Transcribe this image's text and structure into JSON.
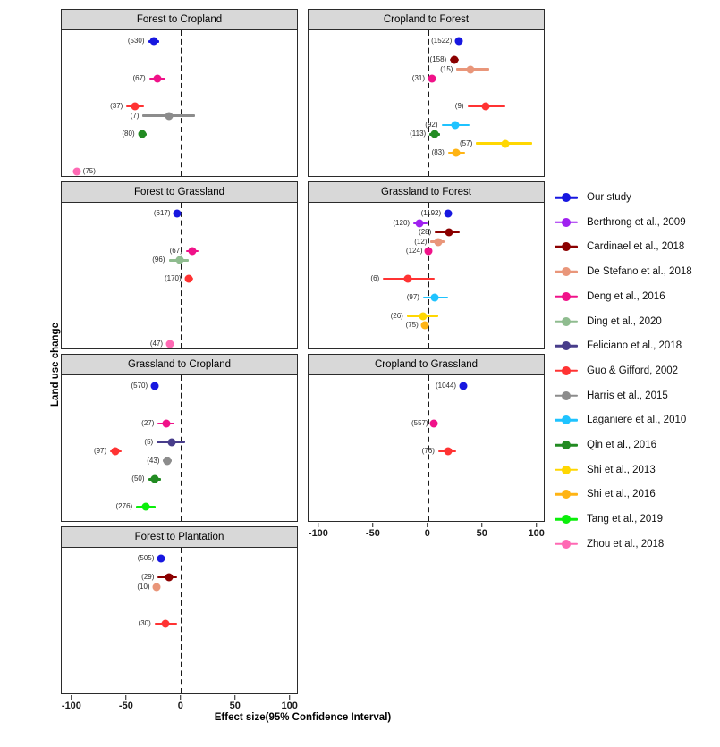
{
  "figure": {
    "y_axis_label": "Land use change",
    "x_axis_label": "Effect size(95% Confidence Interval)"
  },
  "legend": {
    "items": [
      {
        "key": "our-study",
        "label": "Our study",
        "color": "#1717e0"
      },
      {
        "key": "berthrong-2009",
        "label": "Berthrong et al., 2009",
        "color": "#a021f0"
      },
      {
        "key": "cardinael-2018",
        "label": "Cardinael et al., 2018",
        "color": "#8b0000"
      },
      {
        "key": "de-stefano-2018",
        "label": "De Stefano et al., 2018",
        "color": "#e9967a"
      },
      {
        "key": "deng-2016",
        "label": "Deng et al., 2016",
        "color": "#f01289"
      },
      {
        "key": "ding-2020",
        "label": "Ding et al., 2020",
        "color": "#8fbc8f"
      },
      {
        "key": "feliciano-2018",
        "label": "Feliciano et al., 2018",
        "color": "#483d8b"
      },
      {
        "key": "guo-gifford-2002",
        "label": "Guo & Gifford, 2002",
        "color": "#ff3333"
      },
      {
        "key": "harris-2015",
        "label": "Harris et al., 2015",
        "color": "#8c8c8c"
      },
      {
        "key": "laganiere-2010",
        "label": "Laganiere et al., 2010",
        "color": "#1fc3ff"
      },
      {
        "key": "qin-2016",
        "label": "Qin et al., 2016",
        "color": "#228b22"
      },
      {
        "key": "shi-2013",
        "label": "Shi et al., 2013",
        "color": "#ffd702"
      },
      {
        "key": "shi-2016",
        "label": "Shi et al., 2016",
        "color": "#ffb414"
      },
      {
        "key": "tang-2019",
        "label": "Tang et al., 2019",
        "color": "#0bef0b"
      },
      {
        "key": "zhou-2018",
        "label": "Zhou et al., 2018",
        "color": "#ff69b4"
      }
    ]
  },
  "chart_data": {
    "type": "scatter",
    "subtype": "forest-plot-pointrange",
    "xlabel": "Effect size(95% Confidence Interval)",
    "ylabel": "Land use change",
    "x_ticks": [
      -100,
      -50,
      0,
      50,
      100
    ],
    "xlim": [
      -110,
      108
    ],
    "zero_reference_line": 0,
    "grid": false,
    "legend_position": "right",
    "panels": [
      {
        "title": "Forest to Cropland",
        "points": [
          {
            "study": "our-study",
            "n": 530,
            "value": -25,
            "ci": [
              -30,
              -20
            ]
          },
          {
            "study": "deng-2016",
            "n": 67,
            "value": -21,
            "ci": [
              -29,
              -14
            ]
          },
          {
            "study": "guo-gifford-2002",
            "n": 37,
            "value": -42,
            "ci": [
              -50,
              -34
            ]
          },
          {
            "study": "harris-2015",
            "n": 7,
            "value": -11,
            "ci": [
              -35,
              13
            ]
          },
          {
            "study": "qin-2016",
            "n": 80,
            "value": -35,
            "ci": [
              -39,
              -31
            ]
          },
          {
            "study": "zhou-2018",
            "n": 75,
            "value": -96,
            "ci": [
              -98,
              -94
            ],
            "label_side": "right"
          }
        ]
      },
      {
        "title": "Cropland to Forest",
        "points": [
          {
            "study": "our-study",
            "n": 1522,
            "value": 29,
            "ci": [
              26,
              32
            ]
          },
          {
            "study": "cardinael-2018",
            "n": 158,
            "value": 25,
            "ci": [
              21,
              29
            ]
          },
          {
            "study": "de-stefano-2018",
            "n": 15,
            "value": 40,
            "ci": [
              27,
              57
            ]
          },
          {
            "study": "deng-2016",
            "n": 31,
            "value": 4,
            "ci": [
              1,
              7
            ]
          },
          {
            "study": "guo-gifford-2002",
            "n": 9,
            "value": 54,
            "ci": [
              37,
              72
            ]
          },
          {
            "study": "laganiere-2010",
            "n": 92,
            "value": 26,
            "ci": [
              13,
              39
            ]
          },
          {
            "study": "qin-2016",
            "n": 113,
            "value": 7,
            "ci": [
              2,
              12
            ]
          },
          {
            "study": "shi-2013",
            "n": 57,
            "value": 72,
            "ci": [
              45,
              97
            ]
          },
          {
            "study": "shi-2016",
            "n": 83,
            "value": 27,
            "ci": [
              19,
              35
            ]
          }
        ]
      },
      {
        "title": "Forest to Grassland",
        "points": [
          {
            "study": "our-study",
            "n": 617,
            "value": -3,
            "ci": [
              -6,
              0
            ]
          },
          {
            "study": "deng-2016",
            "n": 67,
            "value": 11,
            "ci": [
              5,
              17
            ]
          },
          {
            "study": "ding-2020",
            "n": 96,
            "value": -1,
            "ci": [
              -11,
              8
            ]
          },
          {
            "study": "guo-gifford-2002",
            "n": 170,
            "value": 8,
            "ci": [
              4,
              12
            ]
          },
          {
            "study": "zhou-2018",
            "n": 47,
            "value": -10,
            "ci": [
              -13,
              -7
            ]
          }
        ]
      },
      {
        "title": "Grassland to Forest",
        "points": [
          {
            "study": "our-study",
            "n": 1192,
            "value": 19,
            "ci": [
              16,
              22
            ]
          },
          {
            "study": "berthrong-2009",
            "n": 120,
            "value": -7,
            "ci": [
              -13,
              0
            ]
          },
          {
            "study": "cardinael-2018",
            "n": 28,
            "value": 20,
            "ci": [
              7,
              30
            ]
          },
          {
            "study": "de-stefano-2018",
            "n": 12,
            "value": 10,
            "ci": [
              3,
              16
            ]
          },
          {
            "study": "deng-2016",
            "n": 124,
            "value": 1,
            "ci": [
              -1,
              3
            ]
          },
          {
            "study": "guo-gifford-2002",
            "n": 6,
            "value": -18,
            "ci": [
              -41,
              7
            ]
          },
          {
            "study": "laganiere-2010",
            "n": 97,
            "value": 7,
            "ci": [
              -4,
              19
            ]
          },
          {
            "study": "shi-2013",
            "n": 26,
            "value": -4,
            "ci": [
              -19,
              10
            ]
          },
          {
            "study": "shi-2016",
            "n": 75,
            "value": -2,
            "ci": [
              -5,
              1
            ]
          }
        ]
      },
      {
        "title": "Grassland to Cropland",
        "points": [
          {
            "study": "our-study",
            "n": 570,
            "value": -24,
            "ci": [
              -27,
              -21
            ]
          },
          {
            "study": "deng-2016",
            "n": 27,
            "value": -13,
            "ci": [
              -21,
              -6
            ]
          },
          {
            "study": "feliciano-2018",
            "n": 5,
            "value": -8,
            "ci": [
              -22,
              4
            ]
          },
          {
            "study": "guo-gifford-2002",
            "n": 97,
            "value": -60,
            "ci": [
              -65,
              -54
            ]
          },
          {
            "study": "harris-2015",
            "n": 43,
            "value": -12,
            "ci": [
              -16,
              -8
            ]
          },
          {
            "study": "qin-2016",
            "n": 50,
            "value": -24,
            "ci": [
              -30,
              -18
            ]
          },
          {
            "study": "tang-2019",
            "n": 276,
            "value": -32,
            "ci": [
              -41,
              -23
            ]
          }
        ]
      },
      {
        "title": "Cropland to Grassland",
        "points": [
          {
            "study": "our-study",
            "n": 1044,
            "value": 33,
            "ci": [
              30,
              36
            ]
          },
          {
            "study": "deng-2016",
            "n": 557,
            "value": 6,
            "ci": [
              4,
              8
            ]
          },
          {
            "study": "guo-gifford-2002",
            "n": 76,
            "value": 19,
            "ci": [
              10,
              27
            ]
          }
        ]
      },
      {
        "title": "Forest to Plantation",
        "points": [
          {
            "study": "our-study",
            "n": 505,
            "value": -18,
            "ci": [
              -21,
              -15
            ]
          },
          {
            "study": "cardinael-2018",
            "n": 29,
            "value": -11,
            "ci": [
              -21,
              -3
            ]
          },
          {
            "study": "de-stefano-2018",
            "n": 10,
            "value": -22,
            "ci": [
              -25,
              -19
            ]
          },
          {
            "study": "guo-gifford-2002",
            "n": 30,
            "value": -14,
            "ci": [
              -24,
              -3
            ]
          }
        ]
      }
    ]
  }
}
